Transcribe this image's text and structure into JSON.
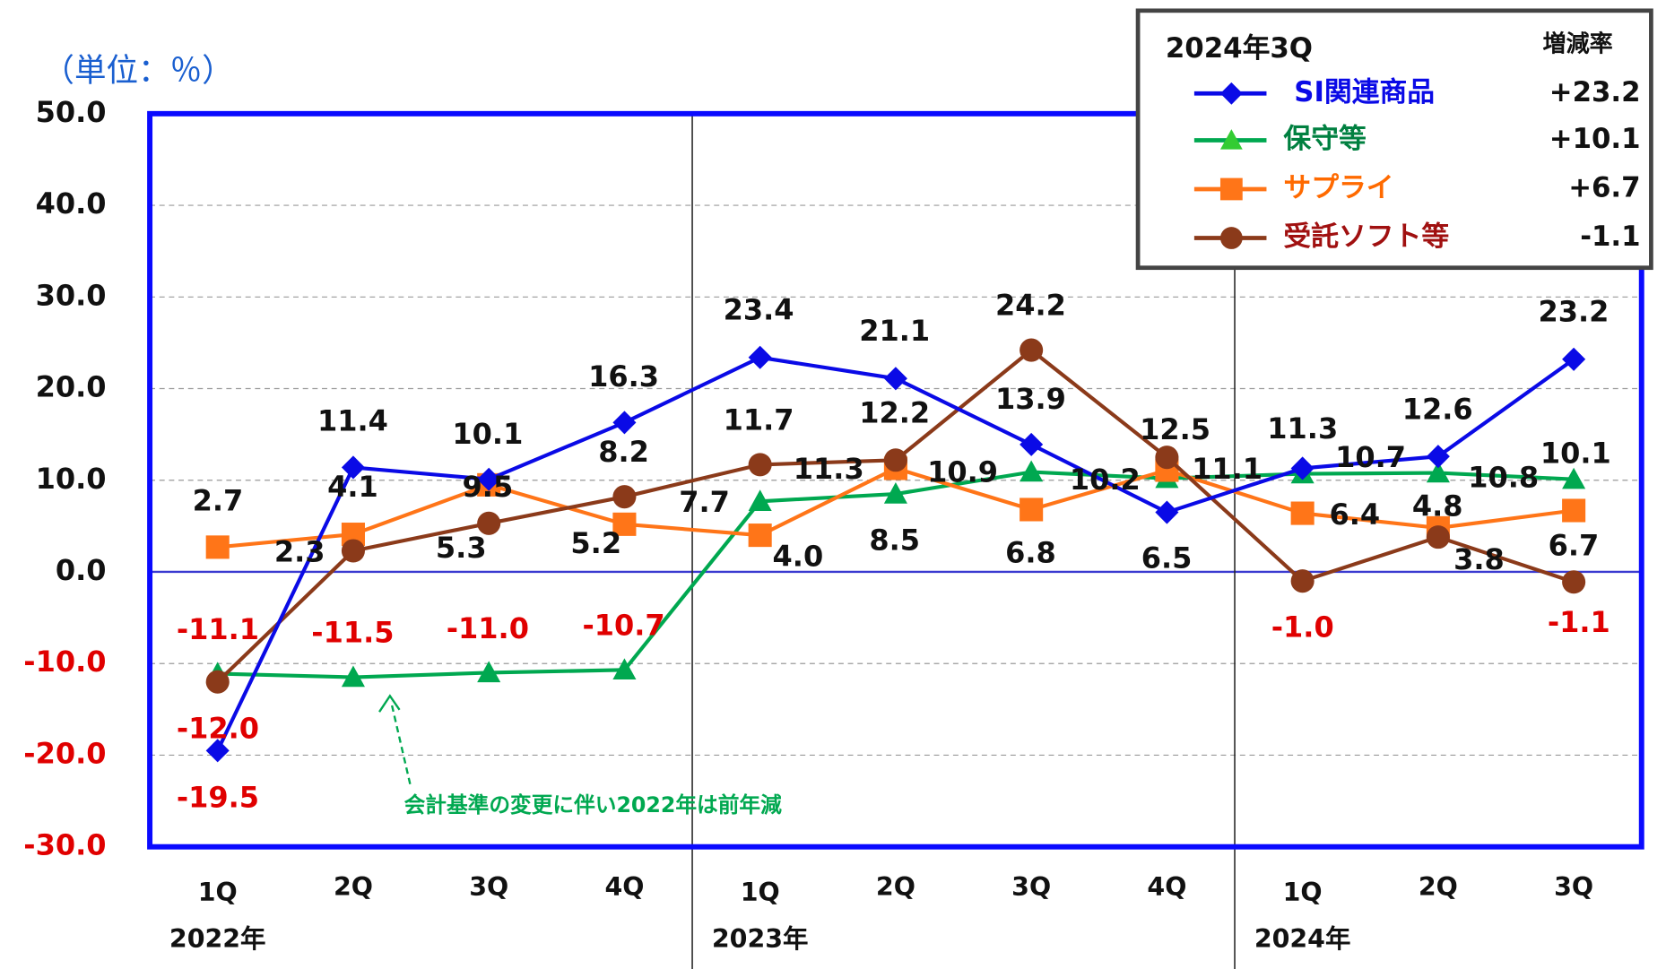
{
  "chart_data": {
    "type": "line",
    "unit_label": "（単位：％）",
    "categories": [
      "1Q",
      "2Q",
      "3Q",
      "4Q",
      "1Q",
      "2Q",
      "3Q",
      "4Q",
      "1Q",
      "2Q",
      "3Q"
    ],
    "groups": [
      {
        "label": "2022年",
        "start": 0,
        "end": 3
      },
      {
        "label": "2023年",
        "start": 4,
        "end": 7
      },
      {
        "label": "2024年",
        "start": 8,
        "end": 10
      }
    ],
    "ylim": [
      -30,
      50
    ],
    "yticks": [
      {
        "value": -30,
        "label": "-30.0"
      },
      {
        "value": -20,
        "label": "-20.0"
      },
      {
        "value": -10,
        "label": "-10.0"
      },
      {
        "value": 0,
        "label": "0.0"
      },
      {
        "value": 10,
        "label": "10.0"
      },
      {
        "value": 20,
        "label": "20.0"
      },
      {
        "value": 30,
        "label": "30.0"
      },
      {
        "value": 40,
        "label": "40.0"
      },
      {
        "value": 50,
        "label": "50.0"
      }
    ],
    "grid": true,
    "legend_title": "2024年3Q",
    "legend_value_header": "増減率",
    "annotation": "会計基準の変更に伴い2022年は前年減",
    "series": [
      {
        "name": "SI関連商品",
        "color": "#0a0ae6",
        "text_color": "#0a0ae6",
        "marker": "diamond",
        "change": "+23.2",
        "values": [
          -19.5,
          11.4,
          10.1,
          16.3,
          23.4,
          21.1,
          13.9,
          6.5,
          11.3,
          12.6,
          23.2
        ],
        "value_labels": [
          "-19.5",
          "11.4",
          "10.1",
          "16.3",
          "23.4",
          "21.1",
          "13.9",
          "6.5",
          "11.3",
          "12.6",
          "23.2"
        ]
      },
      {
        "name": "保守等",
        "color": "#00a850",
        "text_color": "#008040",
        "marker": "triangle",
        "change": "+10.1",
        "values": [
          -11.1,
          -11.5,
          -11.0,
          -10.7,
          7.7,
          8.5,
          10.9,
          10.2,
          10.7,
          10.8,
          10.1
        ],
        "value_labels": [
          "-11.1",
          "-11.5",
          "-11.0",
          "-10.7",
          "7.7",
          "8.5",
          "10.9",
          "10.2",
          "10.7",
          "10.8",
          "10.1"
        ]
      },
      {
        "name": "サプライ",
        "color": "#ff7518",
        "text_color": "#ff6a00",
        "marker": "square",
        "change": "+6.7",
        "values": [
          2.7,
          4.1,
          9.5,
          5.2,
          4.0,
          11.3,
          6.8,
          11.1,
          6.4,
          4.8,
          6.7
        ],
        "value_labels": [
          "2.7",
          "4.1",
          "9.5",
          "5.2",
          "4.0",
          "11.3",
          "6.8",
          "11.1",
          "6.4",
          "4.8",
          "6.7"
        ]
      },
      {
        "name": "受託ソフト等",
        "color": "#8b3a1a",
        "text_color": "#a01010",
        "marker": "circle",
        "change": "-1.1",
        "values": [
          -12.0,
          2.3,
          5.3,
          8.2,
          11.7,
          12.2,
          24.2,
          12.5,
          -1.0,
          3.8,
          -1.1
        ],
        "value_labels": [
          "-12.0",
          "2.3",
          "5.3",
          "8.2",
          "11.7",
          "12.2",
          "24.2",
          "12.5",
          "-1.0",
          "3.8",
          "-1.1"
        ]
      }
    ]
  }
}
